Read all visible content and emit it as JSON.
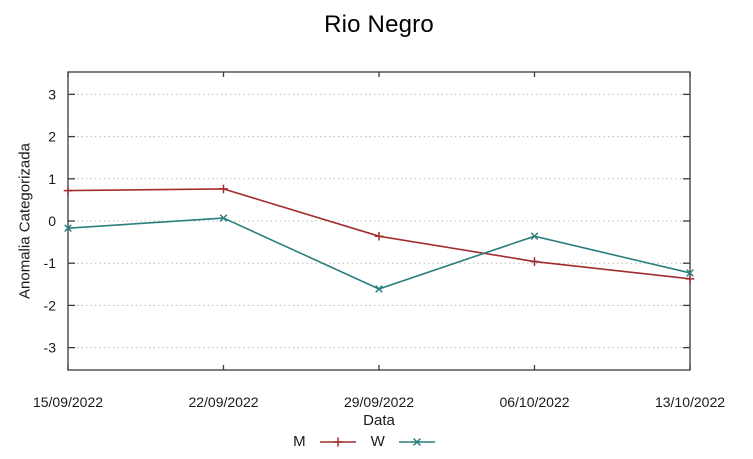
{
  "chart_data": {
    "type": "line",
    "title": "Rio Negro",
    "xlabel": "Data",
    "ylabel": "Anomalia Categorizada",
    "categories": [
      "15/09/2022",
      "22/09/2022",
      "29/09/2022",
      "06/10/2022",
      "13/10/2022"
    ],
    "yticks": [
      3,
      2,
      1,
      0,
      -1,
      -2,
      -3
    ],
    "ylim": [
      -3.53,
      3.53
    ],
    "grid": "horizontal dotted",
    "legend_position": "bottom-center",
    "series": [
      {
        "name": "M",
        "marker": "plus",
        "color": "#a22c2c",
        "values": [
          0.72,
          0.76,
          -0.36,
          -0.96,
          -1.37
        ]
      },
      {
        "name": "W",
        "marker": "cross",
        "color": "#2b7e7e",
        "values": [
          -0.17,
          0.07,
          -1.61,
          -0.36,
          -1.23
        ]
      }
    ]
  },
  "colors": {
    "grid": "#bbbbbb",
    "axis": "#3a3a3a",
    "text": "#1a1a1a",
    "background": "#ffffff"
  }
}
